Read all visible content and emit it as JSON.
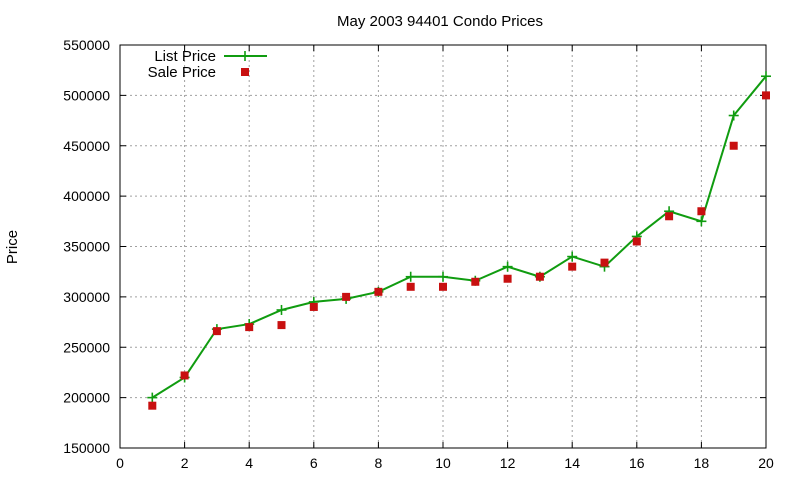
{
  "chart_data": {
    "type": "line",
    "title": "May 2003 94401 Condo Prices",
    "xlabel": "",
    "ylabel": "Price",
    "xlim": [
      0,
      20
    ],
    "ylim": [
      150000,
      550000
    ],
    "x_ticks": [
      0,
      2,
      4,
      6,
      8,
      10,
      12,
      14,
      16,
      18,
      20
    ],
    "y_ticks": [
      150000,
      200000,
      250000,
      300000,
      350000,
      400000,
      450000,
      500000,
      550000
    ],
    "grid": true,
    "legend_position": "top-left",
    "series": [
      {
        "name": "List Price",
        "style": "line-with-plus-markers",
        "color": "#109c10",
        "x": [
          1,
          2,
          3,
          4,
          5,
          6,
          7,
          8,
          9,
          10,
          11,
          12,
          13,
          14,
          15,
          16,
          17,
          18,
          19,
          20
        ],
        "values": [
          200000,
          220000,
          268000,
          273000,
          287000,
          295000,
          298000,
          305000,
          320000,
          320000,
          316000,
          330000,
          320000,
          340000,
          330000,
          360000,
          385000,
          375000,
          480000,
          519000
        ]
      },
      {
        "name": "Sale Price",
        "style": "square-markers",
        "color": "#c81010",
        "x": [
          1,
          2,
          3,
          4,
          5,
          6,
          7,
          8,
          9,
          10,
          11,
          12,
          13,
          14,
          15,
          16,
          17,
          18,
          19,
          20
        ],
        "values": [
          192000,
          222000,
          266000,
          270000,
          272000,
          290000,
          300000,
          305000,
          310000,
          310000,
          315000,
          318000,
          320000,
          330000,
          334000,
          355000,
          380000,
          385000,
          450000,
          500000
        ]
      }
    ]
  }
}
